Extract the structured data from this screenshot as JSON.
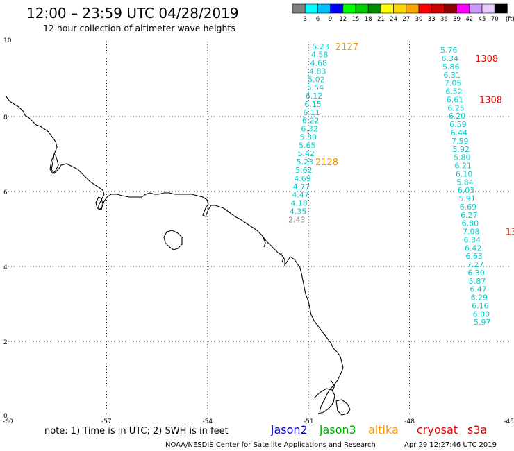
{
  "header": {
    "title": "12:00 – 23:59 UTC 04/28/2019",
    "subtitle": "12 hour collection of altimeter wave heights"
  },
  "legend": {
    "labels": [
      "3",
      "6",
      "9",
      "12",
      "15",
      "18",
      "21",
      "24",
      "27",
      "30",
      "33",
      "36",
      "39",
      "42",
      "45",
      "70",
      "(ft)"
    ],
    "colors": [
      "#808080",
      "#00ffff",
      "#00bfff",
      "#0000ff",
      "#00ff00",
      "#00cd00",
      "#008b00",
      "#ffff00",
      "#ffd700",
      "#ffa500",
      "#ff0000",
      "#cd0000",
      "#8b0000",
      "#ff00ff",
      "#cc99ff",
      "#e6ccff",
      "#000000"
    ]
  },
  "axes": {
    "x_ticks": [
      "-60",
      "-57",
      "-54",
      "-51",
      "-48",
      "-45"
    ],
    "y_ticks": [
      "10",
      "8",
      "6",
      "4",
      "2",
      "0"
    ]
  },
  "tracks": [
    {
      "satellite": "altika",
      "points": [
        {
          "v": "5.23",
          "lon": -50.64,
          "lat": 9.8,
          "c": "#00cccc"
        },
        {
          "v": "4.58",
          "lon": -50.67,
          "lat": 9.58,
          "c": "#00cccc"
        },
        {
          "v": "4.68",
          "lon": -50.7,
          "lat": 9.36,
          "c": "#00cccc"
        },
        {
          "v": "4.83",
          "lon": -50.73,
          "lat": 9.14,
          "c": "#00cccc"
        },
        {
          "v": "5.02",
          "lon": -50.77,
          "lat": 8.92,
          "c": "#00cccc"
        },
        {
          "v": "5.54",
          "lon": -50.8,
          "lat": 8.7,
          "c": "#00cccc"
        },
        {
          "v": "6.12",
          "lon": -50.84,
          "lat": 8.48,
          "c": "#00cccc"
        },
        {
          "v": "6.15",
          "lon": -50.87,
          "lat": 8.26,
          "c": "#00cccc"
        },
        {
          "v": "6.11",
          "lon": -50.91,
          "lat": 8.04,
          "c": "#00cccc"
        },
        {
          "v": "6.22",
          "lon": -50.94,
          "lat": 7.82,
          "c": "#00cccc"
        },
        {
          "v": "6.32",
          "lon": -50.97,
          "lat": 7.6,
          "c": "#00cccc"
        },
        {
          "v": "5.80",
          "lon": -51.01,
          "lat": 7.38,
          "c": "#00cccc"
        },
        {
          "v": "5.65",
          "lon": -51.04,
          "lat": 7.16,
          "c": "#00cccc"
        },
        {
          "v": "5.42",
          "lon": -51.07,
          "lat": 6.94,
          "c": "#00cccc"
        },
        {
          "v": "5.23",
          "lon": -51.11,
          "lat": 6.72,
          "c": "#00cccc"
        },
        {
          "v": "5.62",
          "lon": -51.14,
          "lat": 6.5,
          "c": "#00cccc"
        },
        {
          "v": "4.69",
          "lon": -51.18,
          "lat": 6.28,
          "c": "#00cccc"
        },
        {
          "v": "4.77",
          "lon": -51.21,
          "lat": 6.06,
          "c": "#00cccc"
        },
        {
          "v": "4.47",
          "lon": -51.24,
          "lat": 5.84,
          "c": "#00cccc"
        },
        {
          "v": "4.18",
          "lon": -51.28,
          "lat": 5.62,
          "c": "#00cccc"
        },
        {
          "v": "4.35",
          "lon": -51.31,
          "lat": 5.4,
          "c": "#00cccc"
        },
        {
          "v": "2.43",
          "lon": -51.35,
          "lat": 5.18,
          "c": "#808080"
        }
      ],
      "times": [
        {
          "label": "2127",
          "lon": -50.2,
          "lat": 9.8,
          "c": "#ee9900"
        },
        {
          "label": "2128",
          "lon": -50.8,
          "lat": 6.72,
          "c": "#ee9900"
        }
      ]
    },
    {
      "satellite": "cryosat",
      "points": [
        {
          "v": "5.76",
          "lon": -46.83,
          "lat": 9.7,
          "c": "#00cccc"
        },
        {
          "v": "6.34",
          "lon": -46.8,
          "lat": 9.48,
          "c": "#00cccc"
        },
        {
          "v": "5.86",
          "lon": -46.77,
          "lat": 9.26,
          "c": "#00cccc"
        },
        {
          "v": "6.31",
          "lon": -46.74,
          "lat": 9.04,
          "c": "#00cccc"
        },
        {
          "v": "7.05",
          "lon": -46.71,
          "lat": 8.82,
          "c": "#00cccc"
        },
        {
          "v": "6.52",
          "lon": -46.68,
          "lat": 8.6,
          "c": "#00cccc"
        },
        {
          "v": "6.61",
          "lon": -46.65,
          "lat": 8.38,
          "c": "#00cccc"
        },
        {
          "v": "6.25",
          "lon": -46.62,
          "lat": 8.16,
          "c": "#00cccc"
        },
        {
          "v": "6.20",
          "lon": -46.59,
          "lat": 7.94,
          "c": "#00cccc"
        },
        {
          "v": "6.59",
          "lon": -46.56,
          "lat": 7.72,
          "c": "#00cccc"
        },
        {
          "v": "6.44",
          "lon": -46.53,
          "lat": 7.5,
          "c": "#00cccc"
        },
        {
          "v": "7.59",
          "lon": -46.5,
          "lat": 7.28,
          "c": "#00cccc"
        },
        {
          "v": "5.92",
          "lon": -46.47,
          "lat": 7.06,
          "c": "#00cccc"
        },
        {
          "v": "5.80",
          "lon": -46.44,
          "lat": 6.84,
          "c": "#00cccc"
        },
        {
          "v": "6.21",
          "lon": -46.41,
          "lat": 6.62,
          "c": "#00cccc"
        },
        {
          "v": "6.10",
          "lon": -46.38,
          "lat": 6.4,
          "c": "#00cccc"
        },
        {
          "v": "5.84",
          "lon": -46.35,
          "lat": 6.18,
          "c": "#00cccc"
        },
        {
          "v": "6.03",
          "lon": -46.32,
          "lat": 5.96,
          "c": "#00cccc"
        },
        {
          "v": "5.91",
          "lon": -46.29,
          "lat": 5.74,
          "c": "#00cccc"
        },
        {
          "v": "6.69",
          "lon": -46.26,
          "lat": 5.52,
          "c": "#00cccc"
        },
        {
          "v": "6.27",
          "lon": -46.23,
          "lat": 5.3,
          "c": "#00cccc"
        },
        {
          "v": "6.80",
          "lon": -46.2,
          "lat": 5.08,
          "c": "#00cccc"
        },
        {
          "v": "7.08",
          "lon": -46.17,
          "lat": 4.86,
          "c": "#00cccc"
        },
        {
          "v": "6.34",
          "lon": -46.14,
          "lat": 4.64,
          "c": "#00cccc"
        },
        {
          "v": "6.42",
          "lon": -46.11,
          "lat": 4.42,
          "c": "#00cccc"
        },
        {
          "v": "6.63",
          "lon": -46.08,
          "lat": 4.2,
          "c": "#00cccc"
        },
        {
          "v": "7.27",
          "lon": -46.05,
          "lat": 3.98,
          "c": "#00cccc"
        },
        {
          "v": "6.30",
          "lon": -46.02,
          "lat": 3.76,
          "c": "#00cccc"
        },
        {
          "v": "5.87",
          "lon": -45.99,
          "lat": 3.54,
          "c": "#00cccc"
        },
        {
          "v": "6.47",
          "lon": -45.96,
          "lat": 3.32,
          "c": "#00cccc"
        },
        {
          "v": "6.29",
          "lon": -45.93,
          "lat": 3.1,
          "c": "#00cccc"
        },
        {
          "v": "6.16",
          "lon": -45.9,
          "lat": 2.88,
          "c": "#00cccc"
        },
        {
          "v": "6.00",
          "lon": -45.87,
          "lat": 2.66,
          "c": "#00cccc"
        },
        {
          "v": "5.97",
          "lon": -45.84,
          "lat": 2.44,
          "c": "#00cccc"
        }
      ],
      "times": [
        {
          "label": "1308",
          "lon": -46.05,
          "lat": 9.48,
          "c": "#ee0000"
        },
        {
          "label": "1308",
          "lon": -45.93,
          "lat": 8.38,
          "c": "#ee0000"
        },
        {
          "label": "13",
          "lon": -45.15,
          "lat": 4.86,
          "c": "#ee0000"
        }
      ]
    }
  ],
  "footer": {
    "note": "note:  1) Time is in UTC;  2) SWH is in feet",
    "satellites": [
      {
        "name": "jason2",
        "color": "#0000cc"
      },
      {
        "name": "jason3",
        "color": "#00aa00"
      },
      {
        "name": "altika",
        "color": "#ff9900"
      },
      {
        "name": "cryosat",
        "color": "#ee0000"
      },
      {
        "name": "s3a",
        "color": "#cc0000"
      }
    ],
    "credit": "NOAA/NESDIS Center for Satellite Applications and Research",
    "timestamp": "Apr 29 12:27:46 UTC 2019"
  }
}
